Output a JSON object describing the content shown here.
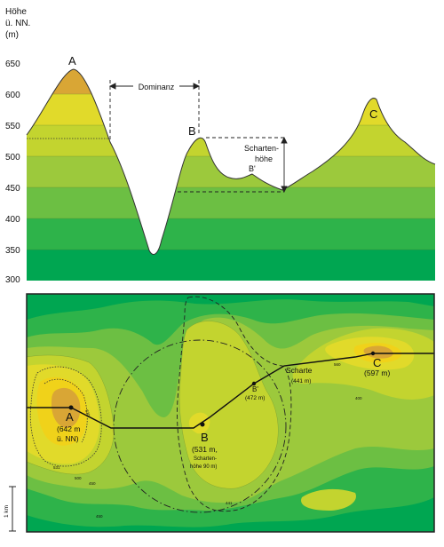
{
  "profile": {
    "axis_title": [
      "Höhe",
      "ü. NN.",
      "(m)"
    ],
    "ticks": [
      "650",
      "600",
      "550",
      "500",
      "450",
      "400",
      "350",
      "300"
    ],
    "peaks": {
      "a": "A",
      "b": "B",
      "b_prime": "B'",
      "c": "C"
    },
    "dominanz_label": "Dominanz",
    "schartenhoehe_label": [
      "Scharten-",
      "höhe"
    ]
  },
  "map": {
    "label_a": [
      "A",
      "(642 m",
      "ü. NN)"
    ],
    "label_b": [
      "B",
      "(531 m,",
      "Scharten-",
      "höhe 90 m)"
    ],
    "label_b_prime": [
      "B'",
      "(472 m)"
    ],
    "label_scharte": [
      "Scharte",
      "(441 m)"
    ],
    "label_c": [
      "C",
      "(597 m)"
    ],
    "scale_label": "1 km",
    "contour_labels": [
      "620",
      "531",
      "500",
      "450",
      "560",
      "400",
      "450",
      "441"
    ]
  },
  "colors": {
    "band_300": "#00a651",
    "band_350": "#2eb34a",
    "band_400": "#6cbf43",
    "band_450": "#9cc93c",
    "band_500": "#c3d42f",
    "band_550": "#e1da2a",
    "band_600": "#f0d21a",
    "band_650": "#d9a635"
  }
}
